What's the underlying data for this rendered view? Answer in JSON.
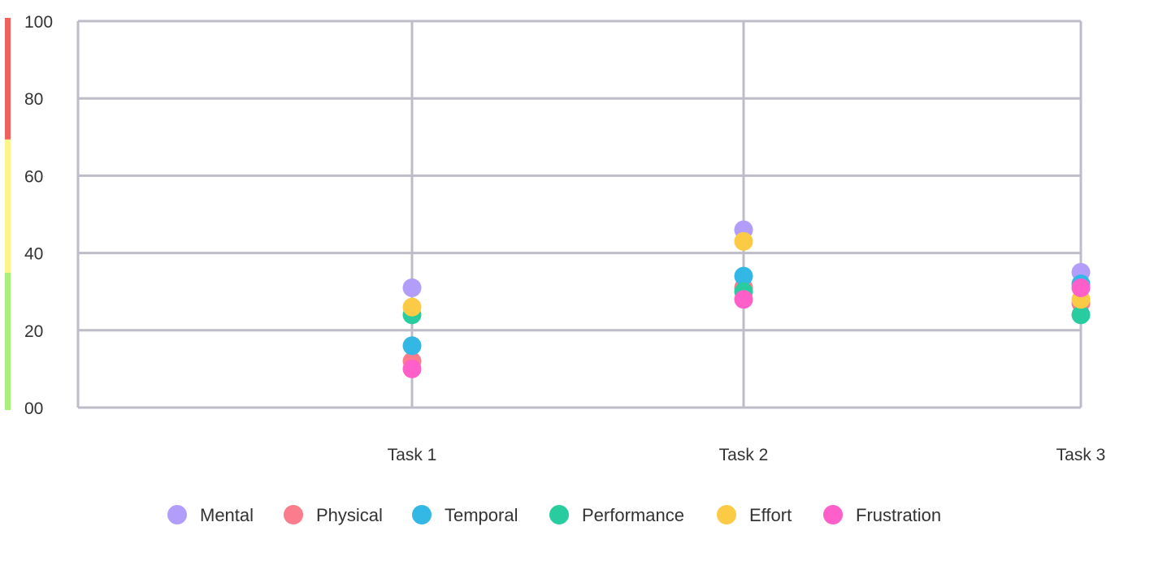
{
  "chart_data": {
    "type": "scatter",
    "categories": [
      "Task 1",
      "Task 2",
      "Task 3"
    ],
    "ylim": [
      0,
      100
    ],
    "y_ticks": [
      0,
      20,
      40,
      60,
      80,
      100
    ],
    "y_tick_labels": [
      "00",
      "20",
      "40",
      "60",
      "80",
      "100"
    ],
    "grid": true,
    "legend_position": "bottom",
    "zones": [
      {
        "from": 0,
        "to": 35,
        "color": "#a8f07a"
      },
      {
        "from": 35,
        "to": 69,
        "color": "#fdf58a"
      },
      {
        "from": 69,
        "to": 100,
        "color": "#f0605d"
      }
    ],
    "series": [
      {
        "name": "Mental",
        "color": "#b39dfa",
        "values": [
          31,
          46,
          35
        ]
      },
      {
        "name": "Physical",
        "color": "#fb7c8c",
        "values": [
          12,
          31,
          27
        ]
      },
      {
        "name": "Temporal",
        "color": "#33b8e6",
        "values": [
          16,
          34,
          32
        ]
      },
      {
        "name": "Performance",
        "color": "#29cc9e",
        "values": [
          24,
          30,
          24
        ]
      },
      {
        "name": "Effort",
        "color": "#fccb45",
        "values": [
          26,
          43,
          28
        ]
      },
      {
        "name": "Frustration",
        "color": "#fe5fc8",
        "values": [
          10,
          28,
          31
        ]
      }
    ]
  }
}
